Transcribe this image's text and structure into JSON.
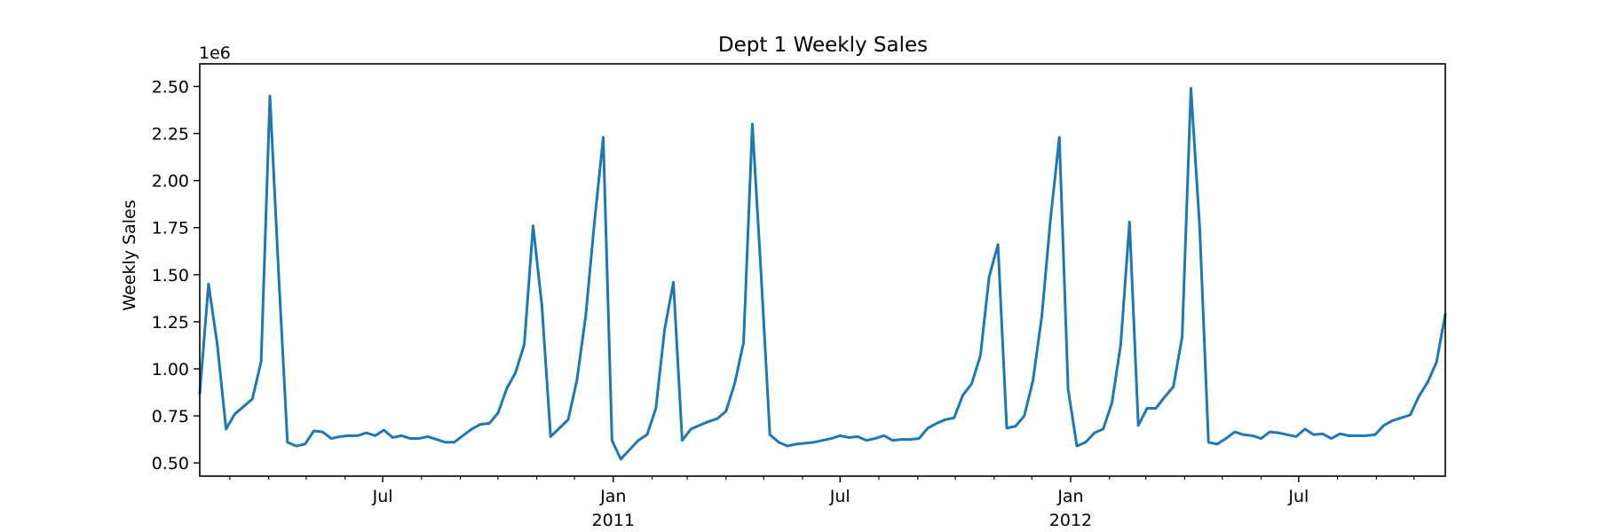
{
  "chart_data": {
    "type": "line",
    "title": "Dept 1 Weekly Sales",
    "xlabel": "",
    "ylabel": "Weekly Sales",
    "y_offset_text": "1e6",
    "y_scale": 1000000,
    "ylim": [
      0.43,
      2.62
    ],
    "y_ticks": [
      0.5,
      0.75,
      1.0,
      1.25,
      1.5,
      1.75,
      2.0,
      2.25,
      2.5
    ],
    "y_tick_labels": [
      "0.50",
      "0.75",
      "1.00",
      "1.25",
      "1.50",
      "1.75",
      "2.00",
      "2.25",
      "2.50"
    ],
    "xlim": [
      "2010-02-05",
      "2012-10-26"
    ],
    "x_major_ticks": [
      {
        "date": "2010-07-01",
        "label": "Jul",
        "sublabel": ""
      },
      {
        "date": "2011-01-01",
        "label": "Jan",
        "sublabel": "2011"
      },
      {
        "date": "2011-07-01",
        "label": "Jul",
        "sublabel": ""
      },
      {
        "date": "2012-01-01",
        "label": "Jan",
        "sublabel": "2012"
      },
      {
        "date": "2012-07-01",
        "label": "Jul",
        "sublabel": ""
      }
    ],
    "x_minor_ticks": [
      "2010-03-01",
      "2010-04-01",
      "2010-05-01",
      "2010-06-01",
      "2010-08-01",
      "2010-09-01",
      "2010-10-01",
      "2010-11-01",
      "2010-12-01",
      "2011-02-01",
      "2011-03-01",
      "2011-04-01",
      "2011-05-01",
      "2011-06-01",
      "2011-08-01",
      "2011-09-01",
      "2011-10-01",
      "2011-11-01",
      "2011-12-01",
      "2012-02-01",
      "2012-03-01",
      "2012-04-01",
      "2012-05-01",
      "2012-06-01",
      "2012-08-01",
      "2012-09-01",
      "2012-10-01"
    ],
    "grid": false,
    "color": "#1f77b4",
    "series": [
      {
        "x": [
          "2010-02-05",
          "2010-02-12",
          "2010-02-19",
          "2010-02-26",
          "2010-03-05",
          "2010-03-12",
          "2010-03-19",
          "2010-03-26",
          "2010-04-02",
          "2010-04-09",
          "2010-04-16",
          "2010-04-23",
          "2010-04-30",
          "2010-05-07",
          "2010-05-14",
          "2010-05-21",
          "2010-05-28",
          "2010-06-04",
          "2010-06-11",
          "2010-06-18",
          "2010-06-25",
          "2010-07-02",
          "2010-07-09",
          "2010-07-16",
          "2010-07-23",
          "2010-07-30",
          "2010-08-06",
          "2010-08-13",
          "2010-08-20",
          "2010-08-27",
          "2010-09-03",
          "2010-09-10",
          "2010-09-17",
          "2010-09-24",
          "2010-10-01",
          "2010-10-08",
          "2010-10-15",
          "2010-10-22",
          "2010-10-29",
          "2010-11-05",
          "2010-11-12",
          "2010-11-19",
          "2010-11-26",
          "2010-12-03",
          "2010-12-10",
          "2010-12-17",
          "2010-12-24",
          "2010-12-31",
          "2011-01-07",
          "2011-01-14",
          "2011-01-21",
          "2011-01-28",
          "2011-02-04",
          "2011-02-11",
          "2011-02-18",
          "2011-02-25",
          "2011-03-04",
          "2011-03-11",
          "2011-03-18",
          "2011-03-25",
          "2011-04-01",
          "2011-04-08",
          "2011-04-15",
          "2011-04-22",
          "2011-04-29",
          "2011-05-06",
          "2011-05-13",
          "2011-05-20",
          "2011-05-27",
          "2011-06-03",
          "2011-06-10",
          "2011-06-17",
          "2011-06-24",
          "2011-07-01",
          "2011-07-08",
          "2011-07-15",
          "2011-07-22",
          "2011-07-29",
          "2011-08-05",
          "2011-08-12",
          "2011-08-19",
          "2011-08-26",
          "2011-09-02",
          "2011-09-09",
          "2011-09-16",
          "2011-09-23",
          "2011-09-30",
          "2011-10-07",
          "2011-10-14",
          "2011-10-21",
          "2011-10-28",
          "2011-11-04",
          "2011-11-11",
          "2011-11-18",
          "2011-11-25",
          "2011-12-02",
          "2011-12-09",
          "2011-12-16",
          "2011-12-23",
          "2011-12-30",
          "2012-01-06",
          "2012-01-13",
          "2012-01-20",
          "2012-01-27",
          "2012-02-03",
          "2012-02-10",
          "2012-02-17",
          "2012-02-24",
          "2012-03-02",
          "2012-03-09",
          "2012-03-16",
          "2012-03-23",
          "2012-03-30",
          "2012-04-06",
          "2012-04-13",
          "2012-04-20",
          "2012-04-27",
          "2012-05-04",
          "2012-05-11",
          "2012-05-18",
          "2012-05-25",
          "2012-06-01",
          "2012-06-08",
          "2012-06-15",
          "2012-06-22",
          "2012-06-29",
          "2012-07-06",
          "2012-07-13",
          "2012-07-20",
          "2012-07-27",
          "2012-08-03",
          "2012-08-10",
          "2012-08-17",
          "2012-08-24",
          "2012-08-31",
          "2012-09-07",
          "2012-09-14",
          "2012-09-21",
          "2012-09-28",
          "2012-10-05",
          "2012-10-12",
          "2012-10-19",
          "2012-10-26"
        ],
        "y": [
          0.87,
          1.45,
          1.13,
          0.68,
          0.76,
          0.8,
          0.84,
          1.04,
          2.45,
          1.5,
          0.61,
          0.59,
          0.6,
          0.67,
          0.665,
          0.63,
          0.64,
          0.645,
          0.645,
          0.66,
          0.645,
          0.675,
          0.635,
          0.645,
          0.63,
          0.63,
          0.64,
          0.625,
          0.61,
          0.61,
          0.645,
          0.68,
          0.705,
          0.71,
          0.765,
          0.895,
          0.98,
          1.13,
          1.76,
          1.34,
          0.64,
          0.685,
          0.73,
          0.94,
          1.28,
          1.78,
          2.23,
          0.62,
          0.52,
          0.57,
          0.62,
          0.65,
          0.79,
          1.21,
          1.46,
          0.62,
          0.68,
          0.7,
          0.72,
          0.735,
          0.775,
          0.925,
          1.14,
          2.3,
          1.5,
          0.65,
          0.61,
          0.59,
          0.6,
          0.605,
          0.61,
          0.62,
          0.63,
          0.645,
          0.635,
          0.64,
          0.62,
          0.63,
          0.645,
          0.62,
          0.625,
          0.625,
          0.63,
          0.685,
          0.71,
          0.73,
          0.74,
          0.86,
          0.92,
          1.07,
          1.49,
          1.66,
          0.685,
          0.695,
          0.75,
          0.94,
          1.28,
          1.8,
          2.23,
          0.89,
          0.59,
          0.61,
          0.66,
          0.68,
          0.82,
          1.13,
          1.78,
          0.7,
          0.79,
          0.79,
          0.85,
          0.905,
          1.17,
          2.49,
          1.75,
          0.61,
          0.6,
          0.63,
          0.665,
          0.65,
          0.645,
          0.63,
          0.665,
          0.66,
          0.65,
          0.64,
          0.68,
          0.65,
          0.655,
          0.63,
          0.655,
          0.645,
          0.645,
          0.645,
          0.65,
          0.7,
          0.725,
          0.74,
          0.755,
          0.855,
          0.93,
          1.035,
          1.29
        ]
      }
    ]
  }
}
